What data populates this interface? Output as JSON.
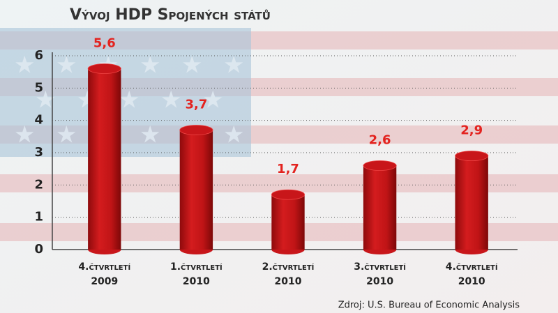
{
  "chart_data": {
    "type": "bar",
    "title": "Vývoj HDP Spojených států",
    "categories": [
      [
        "4.čtvrtletí",
        "2009"
      ],
      [
        "1.čtvrtletí",
        "2010"
      ],
      [
        "2.čtvrtletí",
        "2010"
      ],
      [
        "3.čtvrtletí",
        "2010"
      ],
      [
        "4.čtvrtletí",
        "2010"
      ]
    ],
    "values": [
      5.6,
      3.7,
      1.7,
      2.6,
      2.9
    ],
    "value_labels": [
      "5,6",
      "3,7",
      "1,7",
      "2,6",
      "2,9"
    ],
    "color": "#c8161a",
    "label_color": "#e3231f",
    "ylim": [
      0,
      6
    ],
    "yticks": [
      0,
      1,
      2,
      3,
      4,
      5,
      6
    ],
    "grid": true,
    "source": "Zdroj: U.S. Bureau of Economic Analysis"
  }
}
